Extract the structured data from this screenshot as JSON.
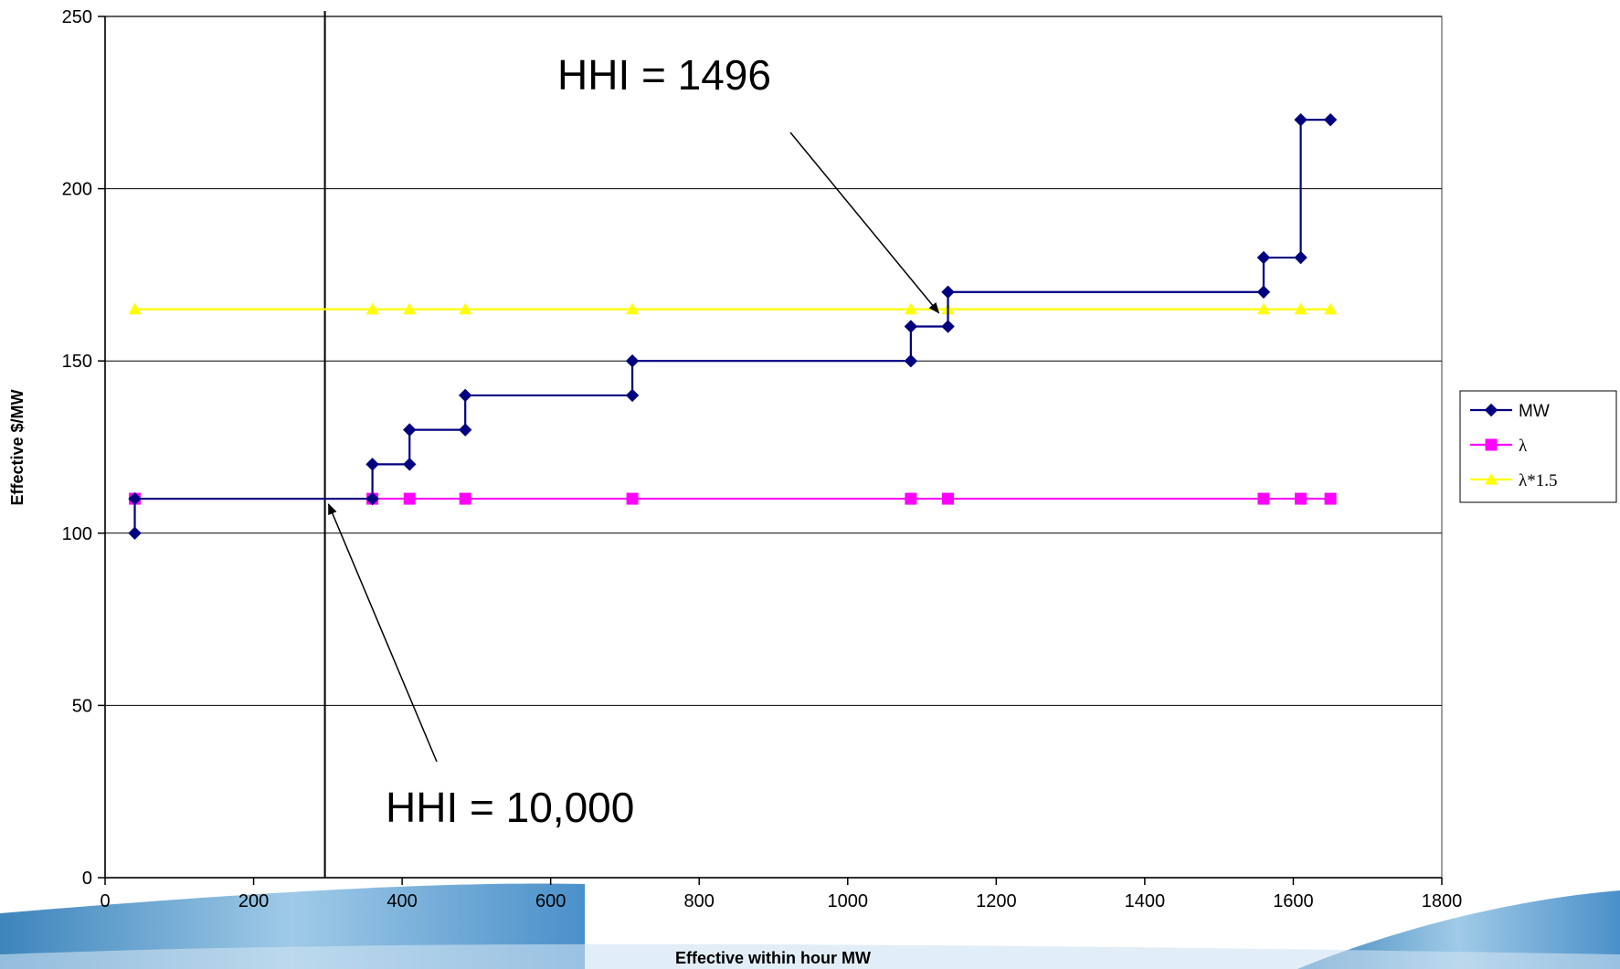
{
  "chart_data": {
    "type": "line",
    "xlabel": "Effective within hour MW",
    "ylabel": "Effective $/MW",
    "xlim": [
      0,
      1800
    ],
    "ylim": [
      0,
      250
    ],
    "x_ticks": [
      0,
      200,
      400,
      600,
      800,
      1000,
      1200,
      1400,
      1600,
      1800
    ],
    "y_ticks": [
      0,
      50,
      100,
      150,
      200,
      250
    ],
    "grid": "horizontal",
    "legend_position": "right",
    "series": [
      {
        "name": "MW",
        "color": "#000080",
        "marker": "diamond",
        "step": true,
        "points": [
          [
            40,
            100
          ],
          [
            40,
            110
          ],
          [
            360,
            110
          ],
          [
            360,
            120
          ],
          [
            410,
            120
          ],
          [
            410,
            130
          ],
          [
            485,
            130
          ],
          [
            485,
            140
          ],
          [
            710,
            140
          ],
          [
            710,
            150
          ],
          [
            1085,
            150
          ],
          [
            1085,
            160
          ],
          [
            1135,
            160
          ],
          [
            1135,
            170
          ],
          [
            1560,
            170
          ],
          [
            1560,
            180
          ],
          [
            1610,
            180
          ],
          [
            1610,
            220
          ],
          [
            1650,
            220
          ]
        ]
      },
      {
        "name": "λ",
        "color": "#ff00ff",
        "marker": "square",
        "step": false,
        "points": [
          [
            40,
            110
          ],
          [
            360,
            110
          ],
          [
            410,
            110
          ],
          [
            485,
            110
          ],
          [
            710,
            110
          ],
          [
            1085,
            110
          ],
          [
            1135,
            110
          ],
          [
            1560,
            110
          ],
          [
            1610,
            110
          ],
          [
            1650,
            110
          ]
        ]
      },
      {
        "name": "λ*1.5",
        "color": "#ffff00",
        "marker": "triangle",
        "step": false,
        "points": [
          [
            40,
            165
          ],
          [
            360,
            165
          ],
          [
            410,
            165
          ],
          [
            485,
            165
          ],
          [
            710,
            165
          ],
          [
            1085,
            165
          ],
          [
            1135,
            165
          ],
          [
            1560,
            165
          ],
          [
            1610,
            165
          ],
          [
            1650,
            165
          ]
        ]
      }
    ],
    "reference_line": {
      "x": 296,
      "color": "#000000"
    },
    "annotations": [
      {
        "text": "HHI = 1496",
        "arrow_to": [
          1135,
          165
        ]
      },
      {
        "text": "HHI = 10,000",
        "arrow_to": [
          296,
          110
        ]
      }
    ]
  }
}
